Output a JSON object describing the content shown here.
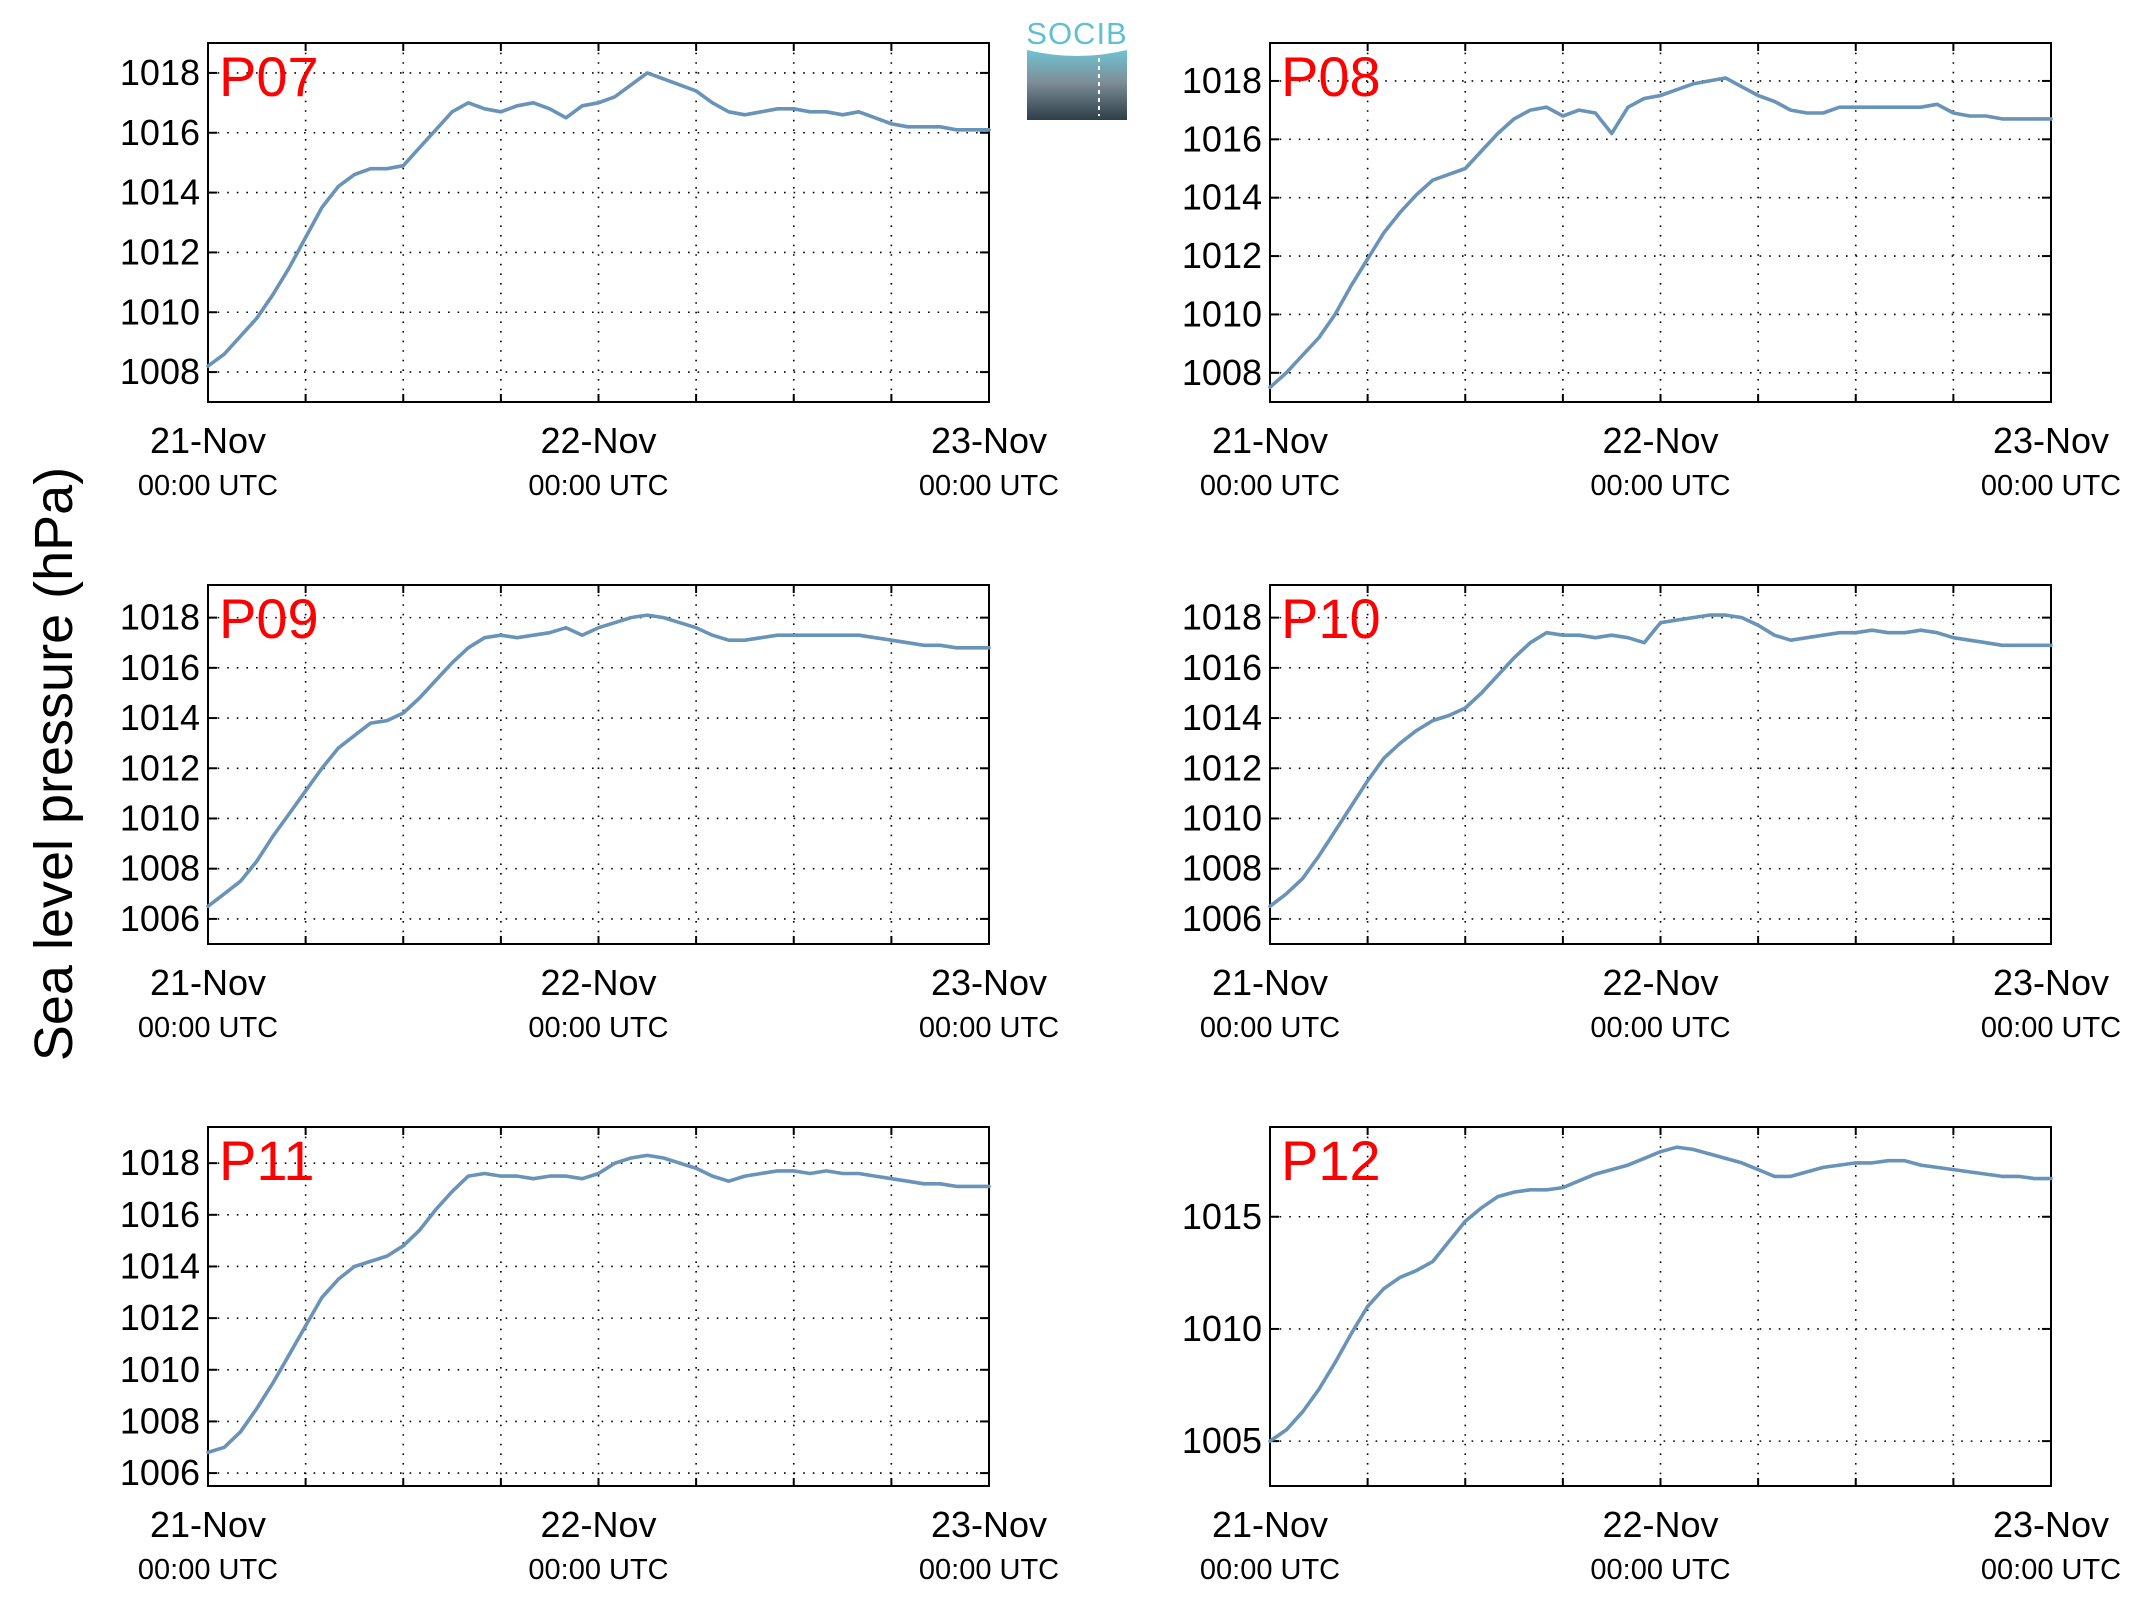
{
  "logo": {
    "text": "SOCIB",
    "name": "socib-logo"
  },
  "ylabel": "Sea level pressure (hPa)",
  "line_color": "#6a93b8",
  "panel_label_color": "#ff0000",
  "chart_data": [
    {
      "type": "line",
      "name": "P07",
      "title": "P07",
      "x_start": "21-Nov 00:00 UTC",
      "x_end": "23-Nov 00:00 UTC",
      "xticks": [
        {
          "top": "21-Nov",
          "bottom": "00:00 UTC"
        },
        {
          "top": "22-Nov",
          "bottom": "00:00 UTC"
        },
        {
          "top": "23-Nov",
          "bottom": "00:00 UTC"
        }
      ],
      "xlim_hours": [
        0,
        48
      ],
      "ylim": [
        1007,
        1019
      ],
      "yticks": [
        1008,
        1010,
        1012,
        1014,
        1016,
        1018
      ],
      "grid": true,
      "x": [
        0,
        1,
        2,
        3,
        4,
        5,
        6,
        7,
        8,
        9,
        10,
        11,
        12,
        13,
        14,
        15,
        16,
        17,
        18,
        19,
        20,
        21,
        22,
        23,
        24,
        25,
        26,
        27,
        28,
        29,
        30,
        31,
        32,
        33,
        34,
        35,
        36,
        37,
        38,
        39,
        40,
        41,
        42,
        43,
        44,
        45,
        46,
        47,
        48
      ],
      "y": [
        1008.2,
        1008.6,
        1009.2,
        1009.8,
        1010.6,
        1011.5,
        1012.5,
        1013.5,
        1014.2,
        1014.6,
        1014.8,
        1014.8,
        1014.9,
        1015.5,
        1016.1,
        1016.7,
        1017.0,
        1016.8,
        1016.7,
        1016.9,
        1017.0,
        1016.8,
        1016.5,
        1016.9,
        1017.0,
        1017.2,
        1017.6,
        1018.0,
        1017.8,
        1017.6,
        1017.4,
        1017.0,
        1016.7,
        1016.6,
        1016.7,
        1016.8,
        1016.8,
        1016.7,
        1016.7,
        1016.6,
        1016.7,
        1016.5,
        1016.3,
        1016.2,
        1016.2,
        1016.2,
        1016.1,
        1016.1,
        1016.1
      ]
    },
    {
      "type": "line",
      "name": "P08",
      "title": "P08",
      "xticks": [
        {
          "top": "21-Nov",
          "bottom": "00:00 UTC"
        },
        {
          "top": "22-Nov",
          "bottom": "00:00 UTC"
        },
        {
          "top": "23-Nov",
          "bottom": "00:00 UTC"
        }
      ],
      "xlim_hours": [
        0,
        48
      ],
      "ylim": [
        1007,
        1019.3
      ],
      "yticks": [
        1008,
        1010,
        1012,
        1014,
        1016,
        1018
      ],
      "grid": true,
      "x": [
        0,
        1,
        2,
        3,
        4,
        5,
        6,
        7,
        8,
        9,
        10,
        11,
        12,
        13,
        14,
        15,
        16,
        17,
        18,
        19,
        20,
        21,
        22,
        23,
        24,
        25,
        26,
        27,
        28,
        29,
        30,
        31,
        32,
        33,
        34,
        35,
        36,
        37,
        38,
        39,
        40,
        41,
        42,
        43,
        44,
        45,
        46,
        47,
        48
      ],
      "y": [
        1007.5,
        1008.0,
        1008.6,
        1009.2,
        1010.0,
        1011.0,
        1011.9,
        1012.8,
        1013.5,
        1014.1,
        1014.6,
        1014.8,
        1015.0,
        1015.6,
        1016.2,
        1016.7,
        1017.0,
        1017.1,
        1016.8,
        1017.0,
        1016.9,
        1016.2,
        1017.1,
        1017.4,
        1017.5,
        1017.7,
        1017.9,
        1018.0,
        1018.1,
        1017.8,
        1017.5,
        1017.3,
        1017.0,
        1016.9,
        1016.9,
        1017.1,
        1017.1,
        1017.1,
        1017.1,
        1017.1,
        1017.1,
        1017.2,
        1016.9,
        1016.8,
        1016.8,
        1016.7,
        1016.7,
        1016.7,
        1016.7
      ]
    },
    {
      "type": "line",
      "name": "P09",
      "title": "P09",
      "xticks": [
        {
          "top": "21-Nov",
          "bottom": "00:00 UTC"
        },
        {
          "top": "22-Nov",
          "bottom": "00:00 UTC"
        },
        {
          "top": "23-Nov",
          "bottom": "00:00 UTC"
        }
      ],
      "xlim_hours": [
        0,
        48
      ],
      "ylim": [
        1005,
        1019.3
      ],
      "yticks": [
        1006,
        1008,
        1010,
        1012,
        1014,
        1016,
        1018
      ],
      "grid": true,
      "x": [
        0,
        1,
        2,
        3,
        4,
        5,
        6,
        7,
        8,
        9,
        10,
        11,
        12,
        13,
        14,
        15,
        16,
        17,
        18,
        19,
        20,
        21,
        22,
        23,
        24,
        25,
        26,
        27,
        28,
        29,
        30,
        31,
        32,
        33,
        34,
        35,
        36,
        37,
        38,
        39,
        40,
        41,
        42,
        43,
        44,
        45,
        46,
        47,
        48
      ],
      "y": [
        1006.5,
        1007.0,
        1007.5,
        1008.3,
        1009.3,
        1010.2,
        1011.1,
        1012.0,
        1012.8,
        1013.3,
        1013.8,
        1013.9,
        1014.2,
        1014.8,
        1015.5,
        1016.2,
        1016.8,
        1017.2,
        1017.3,
        1017.2,
        1017.3,
        1017.4,
        1017.6,
        1017.3,
        1017.6,
        1017.8,
        1018.0,
        1018.1,
        1018.0,
        1017.8,
        1017.6,
        1017.3,
        1017.1,
        1017.1,
        1017.2,
        1017.3,
        1017.3,
        1017.3,
        1017.3,
        1017.3,
        1017.3,
        1017.2,
        1017.1,
        1017.0,
        1016.9,
        1016.9,
        1016.8,
        1016.8,
        1016.8
      ]
    },
    {
      "type": "line",
      "name": "P10",
      "title": "P10",
      "xticks": [
        {
          "top": "21-Nov",
          "bottom": "00:00 UTC"
        },
        {
          "top": "22-Nov",
          "bottom": "00:00 UTC"
        },
        {
          "top": "23-Nov",
          "bottom": "00:00 UTC"
        }
      ],
      "xlim_hours": [
        0,
        48
      ],
      "ylim": [
        1005,
        1019.3
      ],
      "yticks": [
        1006,
        1008,
        1010,
        1012,
        1014,
        1016,
        1018
      ],
      "grid": true,
      "x": [
        0,
        1,
        2,
        3,
        4,
        5,
        6,
        7,
        8,
        9,
        10,
        11,
        12,
        13,
        14,
        15,
        16,
        17,
        18,
        19,
        20,
        21,
        22,
        23,
        24,
        25,
        26,
        27,
        28,
        29,
        30,
        31,
        32,
        33,
        34,
        35,
        36,
        37,
        38,
        39,
        40,
        41,
        42,
        43,
        44,
        45,
        46,
        47,
        48
      ],
      "y": [
        1006.5,
        1007.0,
        1007.6,
        1008.5,
        1009.5,
        1010.5,
        1011.5,
        1012.4,
        1013.0,
        1013.5,
        1013.9,
        1014.1,
        1014.4,
        1015.0,
        1015.7,
        1016.4,
        1017.0,
        1017.4,
        1017.3,
        1017.3,
        1017.2,
        1017.3,
        1017.2,
        1017.0,
        1017.8,
        1017.9,
        1018.0,
        1018.1,
        1018.1,
        1018.0,
        1017.7,
        1017.3,
        1017.1,
        1017.2,
        1017.3,
        1017.4,
        1017.4,
        1017.5,
        1017.4,
        1017.4,
        1017.5,
        1017.4,
        1017.2,
        1017.1,
        1017.0,
        1016.9,
        1016.9,
        1016.9,
        1016.9
      ]
    },
    {
      "type": "line",
      "name": "P11",
      "title": "P11",
      "xticks": [
        {
          "top": "21-Nov",
          "bottom": "00:00 UTC"
        },
        {
          "top": "22-Nov",
          "bottom": "00:00 UTC"
        },
        {
          "top": "23-Nov",
          "bottom": "00:00 UTC"
        }
      ],
      "xlim_hours": [
        0,
        48
      ],
      "ylim": [
        1005.5,
        1019.4
      ],
      "yticks": [
        1006,
        1008,
        1010,
        1012,
        1014,
        1016,
        1018
      ],
      "grid": true,
      "x": [
        0,
        1,
        2,
        3,
        4,
        5,
        6,
        7,
        8,
        9,
        10,
        11,
        12,
        13,
        14,
        15,
        16,
        17,
        18,
        19,
        20,
        21,
        22,
        23,
        24,
        25,
        26,
        27,
        28,
        29,
        30,
        31,
        32,
        33,
        34,
        35,
        36,
        37,
        38,
        39,
        40,
        41,
        42,
        43,
        44,
        45,
        46,
        47,
        48
      ],
      "y": [
        1006.8,
        1007.0,
        1007.6,
        1008.5,
        1009.5,
        1010.6,
        1011.7,
        1012.8,
        1013.5,
        1014.0,
        1014.2,
        1014.4,
        1014.8,
        1015.4,
        1016.2,
        1016.9,
        1017.5,
        1017.6,
        1017.5,
        1017.5,
        1017.4,
        1017.5,
        1017.5,
        1017.4,
        1017.6,
        1018.0,
        1018.2,
        1018.3,
        1018.2,
        1018.0,
        1017.8,
        1017.5,
        1017.3,
        1017.5,
        1017.6,
        1017.7,
        1017.7,
        1017.6,
        1017.7,
        1017.6,
        1017.6,
        1017.5,
        1017.4,
        1017.3,
        1017.2,
        1017.2,
        1017.1,
        1017.1,
        1017.1
      ]
    },
    {
      "type": "line",
      "name": "P12",
      "title": "P12",
      "xticks": [
        {
          "top": "21-Nov",
          "bottom": "00:00 UTC"
        },
        {
          "top": "22-Nov",
          "bottom": "00:00 UTC"
        },
        {
          "top": "23-Nov",
          "bottom": "00:00 UTC"
        }
      ],
      "xlim_hours": [
        0,
        48
      ],
      "ylim": [
        1003,
        1019
      ],
      "yticks": [
        1005,
        1010,
        1015
      ],
      "grid": true,
      "x": [
        0,
        1,
        2,
        3,
        4,
        5,
        6,
        7,
        8,
        9,
        10,
        11,
        12,
        13,
        14,
        15,
        16,
        17,
        18,
        19,
        20,
        21,
        22,
        23,
        24,
        25,
        26,
        27,
        28,
        29,
        30,
        31,
        32,
        33,
        34,
        35,
        36,
        37,
        38,
        39,
        40,
        41,
        42,
        43,
        44,
        45,
        46,
        47,
        48
      ],
      "y": [
        1005.0,
        1005.5,
        1006.3,
        1007.3,
        1008.5,
        1009.8,
        1011.0,
        1011.8,
        1012.3,
        1012.6,
        1013.0,
        1013.9,
        1014.8,
        1015.4,
        1015.9,
        1016.1,
        1016.2,
        1016.2,
        1016.3,
        1016.6,
        1016.9,
        1017.1,
        1017.3,
        1017.6,
        1017.9,
        1018.1,
        1018.0,
        1017.8,
        1017.6,
        1017.4,
        1017.1,
        1016.8,
        1016.8,
        1017.0,
        1017.2,
        1017.3,
        1017.4,
        1017.4,
        1017.5,
        1017.5,
        1017.3,
        1017.2,
        1017.1,
        1017.0,
        1016.9,
        1016.8,
        1016.8,
        1016.7,
        1016.7
      ]
    }
  ]
}
